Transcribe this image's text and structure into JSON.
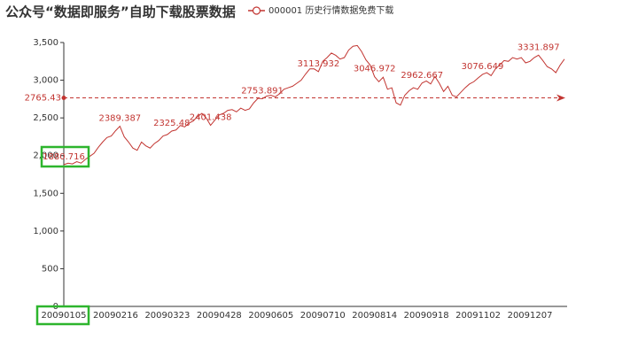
{
  "chart_data": {
    "type": "line",
    "title": "公众号“数据即服务”自助下载股票数据",
    "categories": [
      "20090105",
      null,
      null,
      null,
      null,
      null,
      null,
      null,
      null,
      null,
      null,
      null,
      "20090216",
      null,
      null,
      null,
      null,
      null,
      null,
      null,
      null,
      null,
      null,
      null,
      "20090323",
      null,
      null,
      null,
      null,
      null,
      null,
      null,
      null,
      null,
      null,
      null,
      "20090428",
      null,
      null,
      null,
      null,
      null,
      null,
      null,
      null,
      null,
      null,
      null,
      "20090605",
      null,
      null,
      null,
      null,
      null,
      null,
      null,
      null,
      null,
      null,
      null,
      "20090710",
      null,
      null,
      null,
      null,
      null,
      null,
      null,
      null,
      null,
      null,
      null,
      "20090814",
      null,
      null,
      null,
      null,
      null,
      null,
      null,
      null,
      null,
      null,
      null,
      "20090918",
      null,
      null,
      null,
      null,
      null,
      null,
      null,
      null,
      null,
      null,
      null,
      "20091102",
      null,
      null,
      null,
      null,
      null,
      null,
      null,
      null,
      null,
      null,
      null,
      "20091207",
      null,
      null,
      null,
      null,
      null,
      null,
      null,
      null
    ],
    "series": [
      {
        "name": "000001 历史行情数据免费下载",
        "color": "#c23531",
        "values": [
          1880.716,
          1900,
          1890,
          1920,
          1900,
          1950,
          1990,
          2030,
          2110,
          2180,
          2240,
          2260,
          2330,
          2389.387,
          2250,
          2180,
          2100,
          2070,
          2180,
          2130,
          2100,
          2160,
          2200,
          2260,
          2280,
          2325.48,
          2340,
          2400,
          2380,
          2430,
          2460,
          2520,
          2560,
          2500,
          2401.438,
          2470,
          2540,
          2560,
          2600,
          2610,
          2580,
          2630,
          2600,
          2620,
          2700,
          2760,
          2753.891,
          2790,
          2800,
          2780,
          2820,
          2880,
          2900,
          2920,
          2960,
          3000,
          3080,
          3150,
          3150,
          3113.932,
          3250,
          3300,
          3360,
          3330,
          3280,
          3300,
          3400,
          3450,
          3460,
          3380,
          3270,
          3200,
          3046.972,
          2980,
          3040,
          2880,
          2900,
          2700,
          2670,
          2800,
          2860,
          2900,
          2880,
          2962.667,
          2990,
          2950,
          3050,
          2960,
          2850,
          2920,
          2800,
          2780,
          2840,
          2900,
          2950,
          2980,
          3030,
          3076.649,
          3100,
          3060,
          3150,
          3200,
          3260,
          3250,
          3300,
          3280,
          3300,
          3230,
          3250,
          3300,
          3331.897,
          3260,
          3180,
          3150,
          3100,
          3200,
          3280
        ],
        "value_labels": [
          "1880.716",
          null,
          null,
          null,
          null,
          null,
          null,
          null,
          null,
          null,
          null,
          null,
          null,
          "2389.387",
          null,
          null,
          null,
          null,
          null,
          null,
          null,
          null,
          null,
          null,
          null,
          "2325.48",
          null,
          null,
          null,
          null,
          null,
          null,
          null,
          null,
          "2401.438",
          null,
          null,
          null,
          null,
          null,
          null,
          null,
          null,
          null,
          null,
          null,
          "2753.891",
          null,
          null,
          null,
          null,
          null,
          null,
          null,
          null,
          null,
          null,
          null,
          null,
          "3113.932",
          null,
          null,
          null,
          null,
          null,
          null,
          null,
          null,
          null,
          null,
          null,
          null,
          "3046.972",
          null,
          null,
          null,
          null,
          null,
          null,
          null,
          null,
          null,
          null,
          "2962.667",
          null,
          null,
          null,
          null,
          null,
          null,
          null,
          null,
          null,
          null,
          null,
          null,
          null,
          "3076.649",
          null,
          null,
          null,
          null,
          null,
          null,
          null,
          null,
          null,
          null,
          null,
          null,
          "3331.897",
          null,
          null,
          null,
          null,
          null,
          null
        ]
      }
    ],
    "mark_line": {
      "value": 2765.43
    },
    "ylim": [
      0,
      3500
    ],
    "yticks": [
      0,
      500,
      {
        "value": 1000,
        "label": "1,000"
      },
      {
        "value": 1500,
        "label": "1,500"
      },
      {
        "value": 2000,
        "label": "2,000"
      },
      {
        "value": 2500,
        "label": "2,500"
      },
      {
        "value": 3000,
        "label": "3,000"
      },
      {
        "value": 3500,
        "label": "3,500"
      }
    ],
    "grid": false
  }
}
